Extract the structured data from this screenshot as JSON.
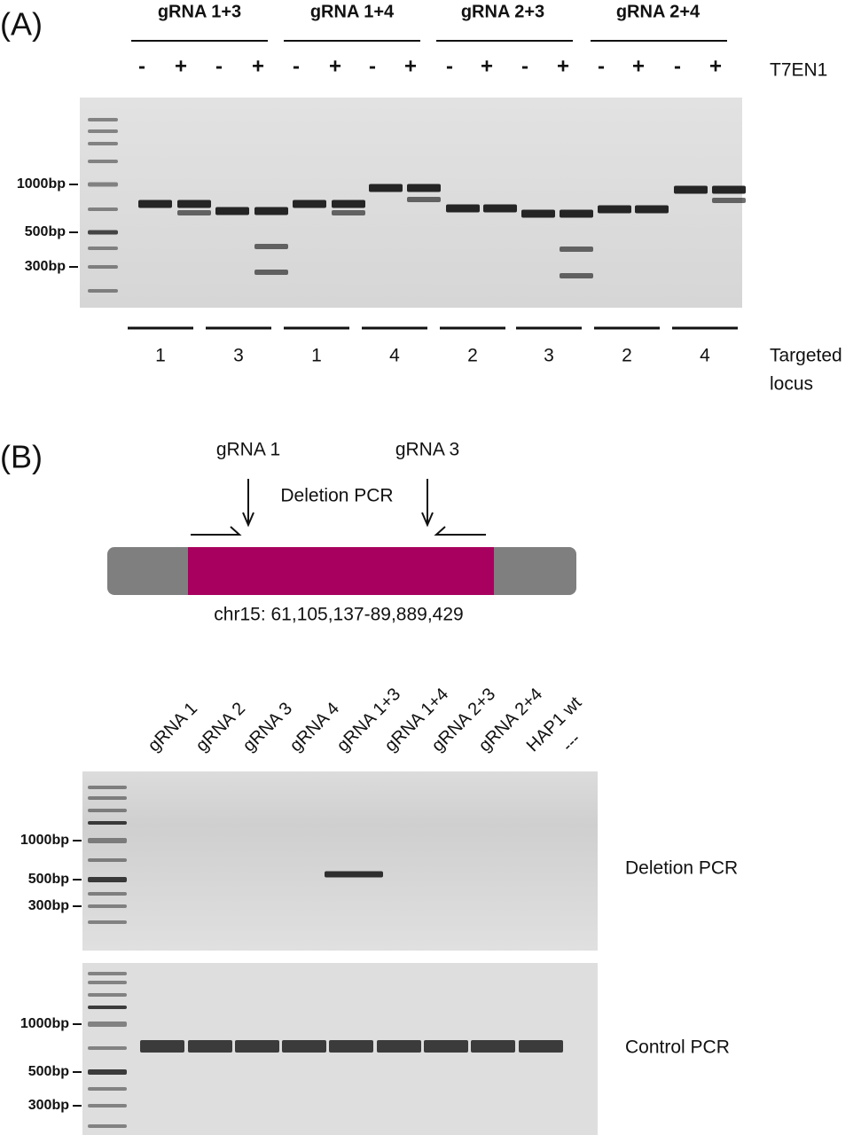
{
  "panel_a": {
    "label": "(A)",
    "groups": [
      "gRNA 1+3",
      "gRNA 1+4",
      "gRNA 2+3",
      "gRNA 2+4"
    ],
    "treatment_signs": [
      "-",
      "+",
      "-",
      "+",
      "-",
      "+",
      "-",
      "+",
      "-",
      "+",
      "-",
      "+",
      "-",
      "+",
      "-",
      "+"
    ],
    "treatment_label": "T7EN1",
    "size_markers": [
      "1000bp",
      "500bp",
      "300bp"
    ],
    "loci": [
      "1",
      "3",
      "1",
      "4",
      "2",
      "3",
      "2",
      "4"
    ],
    "locus_label": [
      "Targeted",
      "locus"
    ]
  },
  "panel_b": {
    "label": "(B)",
    "diagram": {
      "guide_left": "gRNA 1",
      "guide_right": "gRNA 3",
      "pcr_label": "Deletion PCR",
      "coordinates": "chr15: 61,105,137-89,889,429"
    },
    "lanes": [
      "gRNA 1",
      "gRNA 2",
      "gRNA 3",
      "gRNA 4",
      "gRNA 1+3",
      "gRNA 1+4",
      "gRNA 2+3",
      "gRNA 2+4",
      "HAP1 wt",
      "---"
    ],
    "gels": [
      {
        "size_markers": [
          "1000bp",
          "500bp",
          "300bp"
        ],
        "label": "Deletion PCR"
      },
      {
        "size_markers": [
          "1000bp",
          "500bp",
          "300bp"
        ],
        "label": "Control PCR"
      }
    ]
  }
}
